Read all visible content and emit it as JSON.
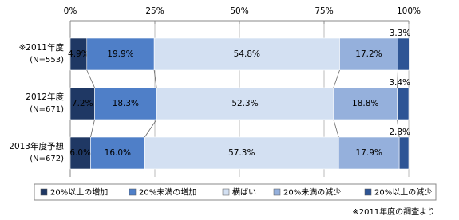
{
  "chart_data": {
    "type": "stacked-bar-horizontal",
    "categories": [
      "※2011年度",
      "2012年度",
      "2013年度予想"
    ],
    "sample_sizes": [
      "(N=553)",
      "(N=671)",
      "(N=672)"
    ],
    "series": [
      {
        "name": "20%以上の増加",
        "color": "#1f3864",
        "values": [
          4.9,
          7.2,
          6.0
        ],
        "value_labels": [
          "4.9%",
          "7.2%",
          "6.0%"
        ]
      },
      {
        "name": "20%未満の増加",
        "color": "#4f7fc8",
        "values": [
          19.9,
          18.3,
          16.0
        ],
        "value_labels": [
          "19.9%",
          "18.3%",
          "16.0%"
        ]
      },
      {
        "name": "横ばい",
        "color": "#d3e0f2",
        "values": [
          54.8,
          52.3,
          57.3
        ],
        "value_labels": [
          "54.8%",
          "52.3%",
          "57.3%"
        ]
      },
      {
        "name": "20%未満の減少",
        "color": "#95b0dc",
        "values": [
          17.2,
          18.8,
          17.9
        ],
        "value_labels": [
          "17.2%",
          "18.8%",
          "17.9%"
        ]
      },
      {
        "name": "20%以上の減少",
        "color": "#2e5595",
        "values": [
          3.3,
          3.4,
          2.8
        ],
        "value_labels": [
          "3.3%",
          "3.4%",
          "2.8%"
        ]
      }
    ],
    "xlim": [
      0,
      100
    ],
    "xticks": [
      {
        "value": 0,
        "label": "0%"
      },
      {
        "value": 25,
        "label": "25%"
      },
      {
        "value": 50,
        "label": "50%"
      },
      {
        "value": 75,
        "label": "75%"
      },
      {
        "value": 100,
        "label": "100%"
      }
    ],
    "grid": true,
    "footnote": "※2011年度の調査より"
  }
}
